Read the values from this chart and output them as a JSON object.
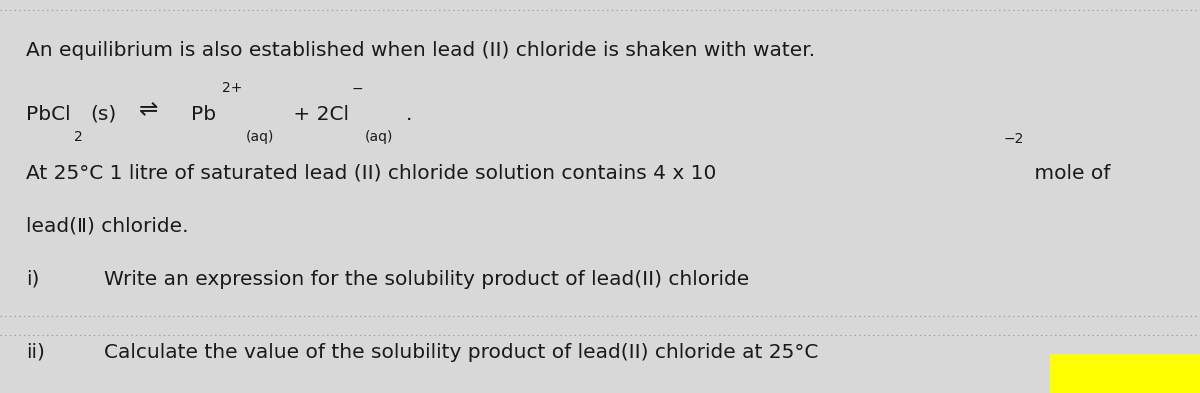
{
  "background_color": "#d8d8d8",
  "text_color": "#1a1a1a",
  "dotted_line_color": "#999999",
  "fs_main": 14.5,
  "fs_sub": 10.0,
  "fs_super": 10.0,
  "line1": "An equilibrium is also established when lead (II) chloride is shaken with water.",
  "line3_text": "At 25°C 1 litre of saturated lead (II) chloride solution contains 4 x 10",
  "line3_exp": "−2",
  "line3_end": " mole of",
  "line4": "lead(Ⅱ) chloride.",
  "line5_i": "i)",
  "line5_text": "Write an expression for the solubility product of lead(II) chloride",
  "line6_ii": "ii)",
  "line6_text": "Calculate the value of the solubility product of lead(II) chloride at 25°C",
  "yellow_patch": true,
  "eq_arrow": "⇌"
}
